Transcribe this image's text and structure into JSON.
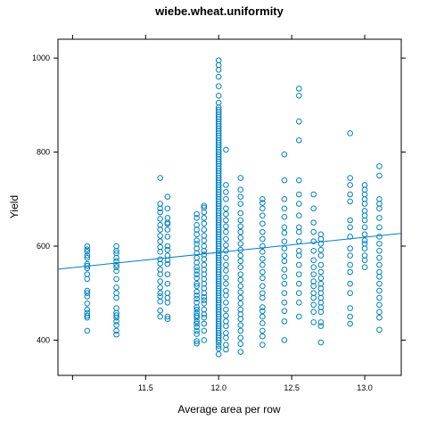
{
  "chart_data": {
    "type": "scatter",
    "title": "wiebe.wheat.uniformity",
    "xlabel": "Average area per row",
    "ylabel": "Yield",
    "xlim": [
      10.9,
      13.25
    ],
    "ylim": [
      325,
      1040
    ],
    "x_ticks": [
      11.5,
      12.0,
      12.5,
      13.0
    ],
    "x_tick_labels": [
      "11.5",
      "12.0",
      "12.5",
      "13.0"
    ],
    "y_ticks": [
      400,
      600,
      800,
      1000
    ],
    "y_tick_labels": [
      "400",
      "600",
      "800",
      "1000"
    ],
    "grid": false,
    "legend": "none",
    "color": "#0080c0",
    "fit_line": {
      "x": [
        10.9,
        13.25
      ],
      "y": [
        551,
        627
      ]
    },
    "groups": [
      {
        "x": 11.1,
        "y": [
          420,
          448,
          452,
          458,
          465,
          478,
          493,
          500,
          505,
          530,
          540,
          553,
          558,
          562,
          575,
          580,
          588,
          593,
          600
        ]
      },
      {
        "x": 11.3,
        "y": [
          412,
          420,
          432,
          440,
          448,
          453,
          458,
          468,
          490,
          500,
          512,
          530,
          547,
          555,
          560,
          568,
          575,
          585,
          590,
          600
        ]
      },
      {
        "x": 11.6,
        "y": [
          450,
          463,
          482,
          493,
          500,
          512,
          525,
          540,
          550,
          563,
          572,
          588,
          598,
          610,
          622,
          635,
          645,
          658,
          672,
          680,
          690,
          745
        ]
      },
      {
        "x": 11.65,
        "y": [
          445,
          450,
          480,
          490,
          500,
          520,
          540,
          562,
          570,
          580,
          592,
          600,
          620,
          635,
          647,
          650,
          660,
          680,
          705
        ]
      },
      {
        "x": 11.85,
        "y": [
          393,
          398,
          413,
          420,
          428,
          435,
          440,
          448,
          452,
          458,
          465,
          470,
          480,
          488,
          495,
          503,
          515,
          520,
          532,
          540,
          548,
          555,
          565,
          575,
          585,
          595,
          605,
          612,
          625,
          635,
          645,
          660,
          668
        ]
      },
      {
        "x": 11.9,
        "y": [
          400,
          420,
          435,
          448,
          455,
          465,
          478,
          485,
          492,
          500,
          510,
          520,
          530,
          540,
          550,
          560,
          572,
          582,
          590,
          600,
          612,
          622,
          635,
          648,
          660,
          672,
          682,
          686
        ]
      },
      {
        "x": 12.0,
        "y": [
          370,
          382,
          388,
          395,
          400,
          405,
          410,
          415,
          420,
          425,
          430,
          435,
          440,
          445,
          450,
          455,
          460,
          465,
          470,
          475,
          480,
          485,
          490,
          495,
          500,
          505,
          510,
          515,
          520,
          525,
          530,
          535,
          540,
          545,
          550,
          555,
          560,
          565,
          570,
          575,
          580,
          585,
          590,
          595,
          600,
          605,
          610,
          615,
          620,
          625,
          630,
          635,
          640,
          645,
          650,
          655,
          660,
          665,
          670,
          675,
          680,
          685,
          690,
          695,
          700,
          705,
          710,
          715,
          720,
          725,
          730,
          735,
          740,
          745,
          750,
          755,
          760,
          765,
          770,
          775,
          780,
          785,
          790,
          795,
          800,
          805,
          810,
          815,
          820,
          825,
          830,
          835,
          840,
          845,
          850,
          855,
          860,
          865,
          870,
          875,
          880,
          885,
          890,
          895,
          905,
          920,
          940,
          960,
          975,
          985,
          995
        ]
      },
      {
        "x": 12.05,
        "y": [
          380,
          390,
          405,
          415,
          430,
          440,
          452,
          465,
          480,
          495,
          505,
          520,
          533,
          548,
          560,
          575,
          590,
          602,
          615,
          630,
          642,
          655,
          668,
          680,
          700,
          715,
          730,
          805
        ]
      },
      {
        "x": 12.15,
        "y": [
          375,
          392,
          405,
          420,
          432,
          445,
          455,
          465,
          478,
          490,
          502,
          515,
          528,
          540,
          555,
          568,
          580,
          592,
          605,
          618,
          630,
          642,
          655,
          670,
          690,
          705,
          720,
          745
        ]
      },
      {
        "x": 12.3,
        "y": [
          390,
          408,
          420,
          436,
          450,
          462,
          470,
          490,
          500,
          515,
          532,
          545,
          560,
          573,
          588,
          600,
          615,
          630,
          648,
          665,
          680,
          692,
          700
        ]
      },
      {
        "x": 12.45,
        "y": [
          400,
          440,
          462,
          480,
          500,
          520,
          535,
          550,
          568,
          580,
          595,
          610,
          628,
          640,
          662,
          680,
          700,
          740,
          795
        ]
      },
      {
        "x": 12.55,
        "y": [
          450,
          480,
          500,
          520,
          540,
          560,
          580,
          590,
          610,
          630,
          640,
          665,
          690,
          710,
          740,
          825,
          865,
          920,
          935
        ]
      },
      {
        "x": 12.65,
        "y": [
          438,
          460,
          475,
          490,
          500,
          515,
          525,
          540,
          555,
          570,
          590,
          610,
          630,
          650,
          680,
          710
        ]
      },
      {
        "x": 12.7,
        "y": [
          395,
          430,
          438,
          460,
          470,
          480,
          490,
          500,
          510,
          520,
          532,
          545,
          560,
          580,
          592,
          605,
          615,
          625
        ]
      },
      {
        "x": 12.9,
        "y": [
          435,
          450,
          468,
          500,
          520,
          545,
          560,
          580,
          595,
          620,
          640,
          655,
          695,
          710,
          730,
          745,
          840
        ]
      },
      {
        "x": 13.0,
        "y": [
          555,
          570,
          580,
          595,
          605,
          612,
          625,
          640,
          655,
          665,
          675,
          690,
          700,
          710,
          720,
          730
        ]
      },
      {
        "x": 13.1,
        "y": [
          422,
          448,
          460,
          475,
          490,
          505,
          520,
          535,
          545,
          560,
          575,
          590,
          605,
          620,
          640,
          660,
          680,
          690,
          700,
          750,
          770
        ]
      }
    ]
  }
}
